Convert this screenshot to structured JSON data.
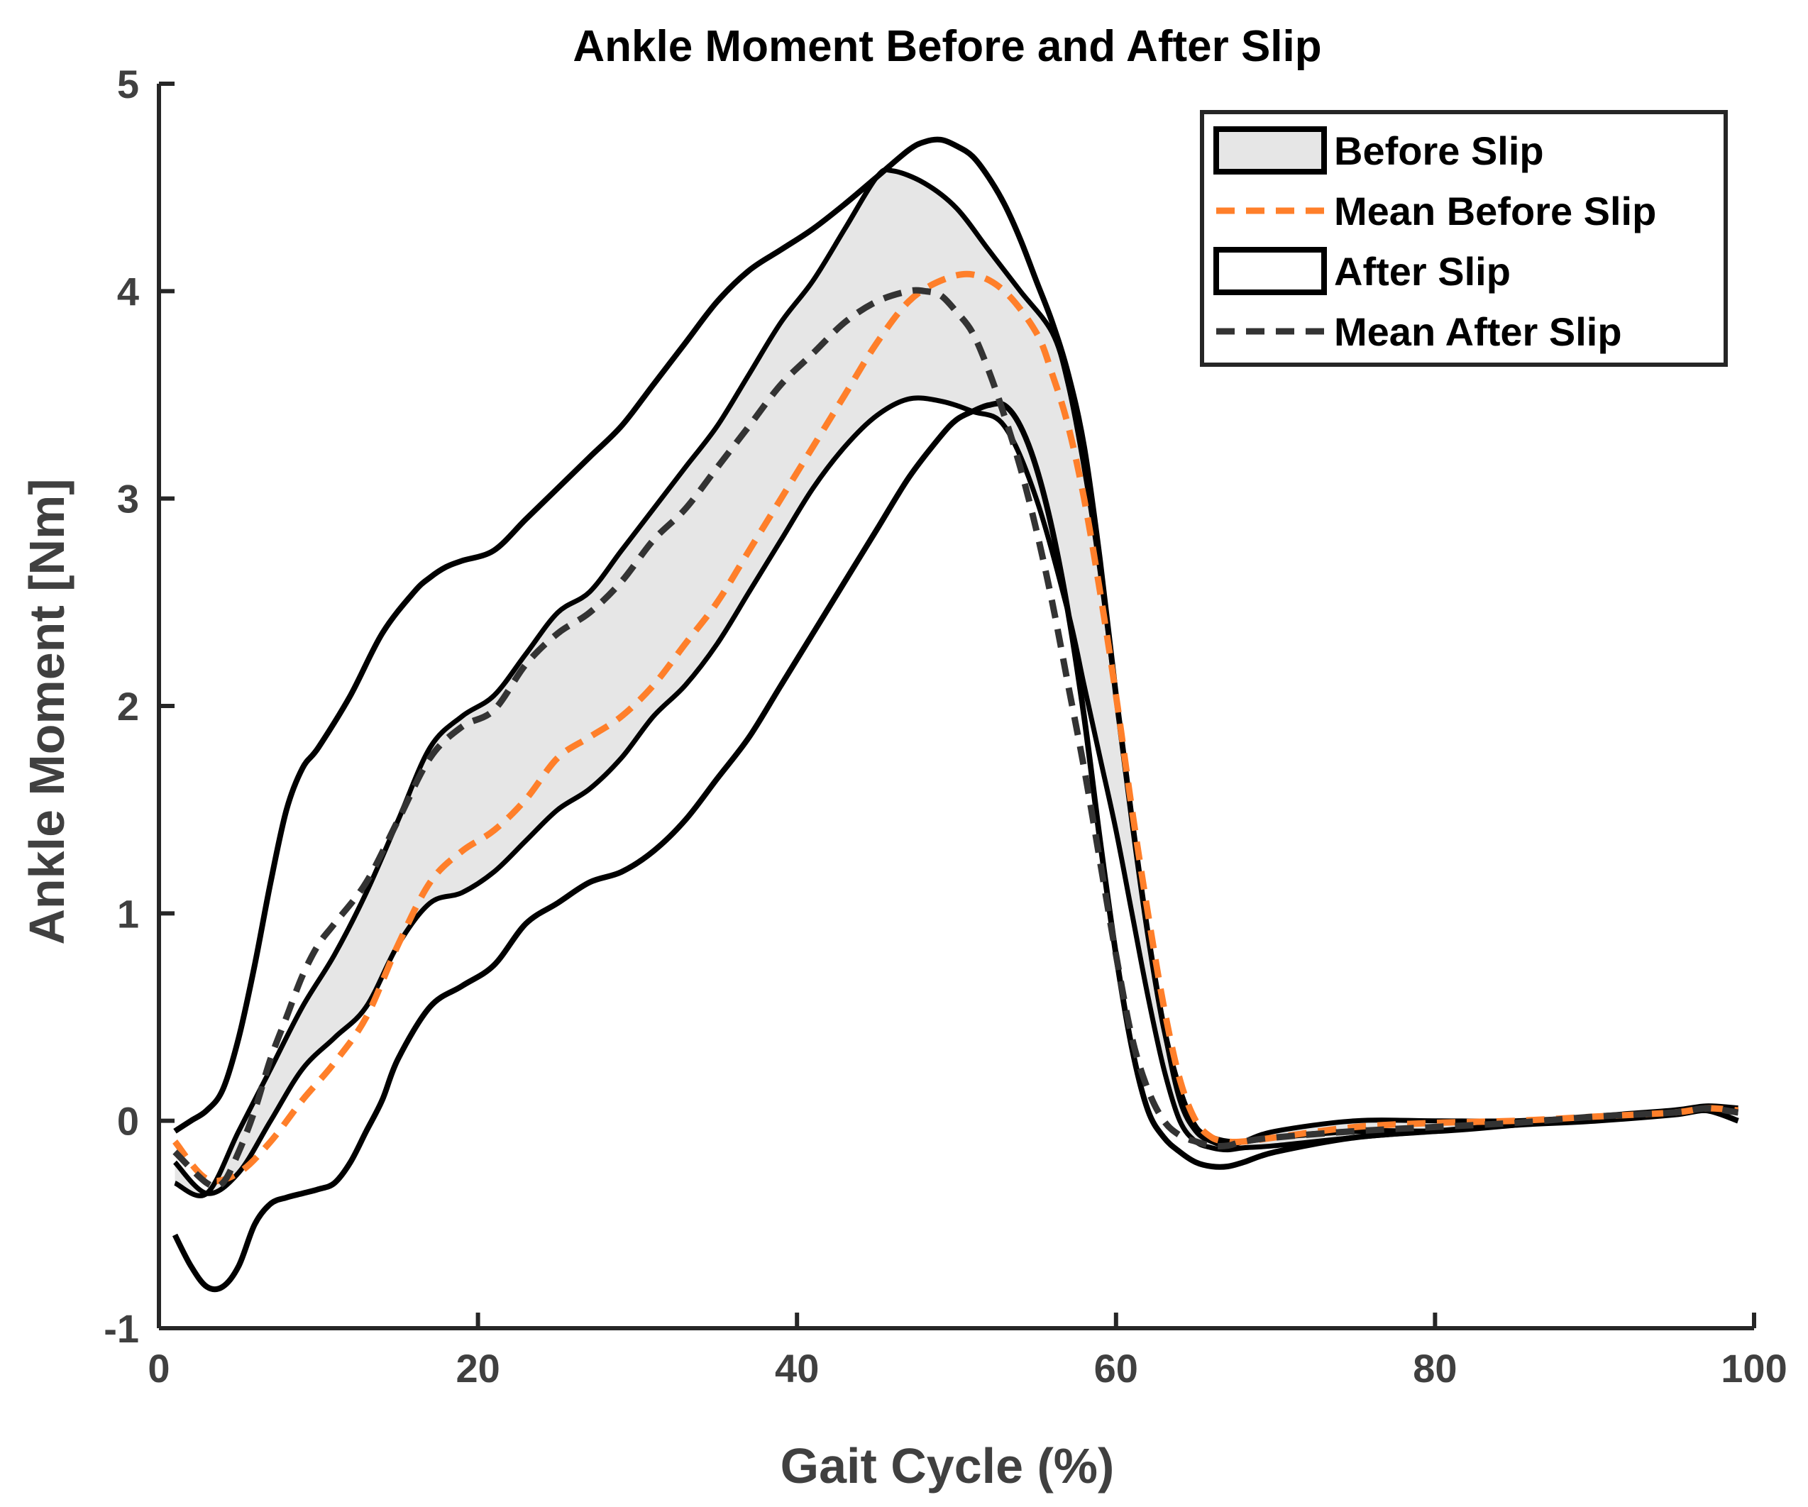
{
  "chart_data": {
    "type": "line",
    "title": "Ankle Moment Before and After Slip",
    "xlabel": "Gait Cycle (%)",
    "ylabel": "Ankle Moment [Nm]",
    "xlim": [
      0,
      100
    ],
    "ylim": [
      -1,
      5
    ],
    "xticks": [
      0,
      20,
      40,
      60,
      80,
      100
    ],
    "yticks": [
      -1,
      0,
      1,
      2,
      3,
      4,
      5
    ],
    "xtick_labels": [
      "0",
      "20",
      "40",
      "60",
      "80",
      "100"
    ],
    "ytick_labels": [
      "-1",
      "0",
      "1",
      "2",
      "3",
      "4",
      "5"
    ],
    "grid": false,
    "legend_position": "top-right",
    "colors": {
      "before_fill": "#e6e6e6",
      "outline": "#000000",
      "mean_before": "#ff7f2a",
      "mean_after": "#333333",
      "axis": "#262626"
    },
    "legend": [
      {
        "label": "Before Slip",
        "kind": "band-filled"
      },
      {
        "label": "Mean Before Slip",
        "kind": "dashed-orange"
      },
      {
        "label": "After Slip",
        "kind": "band-empty"
      },
      {
        "label": "Mean After Slip",
        "kind": "dashed-dark"
      }
    ],
    "series": [
      {
        "name": "Before Slip upper",
        "x": [
          1,
          3,
          5,
          7,
          9,
          11,
          13,
          15,
          17,
          19,
          21,
          23,
          25,
          27,
          29,
          31,
          33,
          35,
          37,
          39,
          41,
          43,
          45,
          46,
          48,
          50,
          52,
          54,
          56,
          57,
          58,
          59,
          60,
          61,
          62,
          63,
          64,
          65,
          66,
          67,
          68,
          70,
          75,
          80,
          85,
          90,
          95,
          97,
          99
        ],
        "y": [
          -0.3,
          -0.35,
          -0.05,
          0.25,
          0.55,
          0.8,
          1.1,
          1.45,
          1.8,
          1.95,
          2.05,
          2.25,
          2.45,
          2.55,
          2.75,
          2.95,
          3.15,
          3.35,
          3.6,
          3.85,
          4.05,
          4.3,
          4.55,
          4.58,
          4.52,
          4.4,
          4.2,
          4.0,
          3.8,
          3.55,
          3.15,
          2.65,
          2.05,
          1.45,
          0.9,
          0.45,
          0.1,
          -0.05,
          -0.1,
          -0.12,
          -0.1,
          -0.05,
          0.0,
          0.0,
          0.0,
          0.02,
          0.05,
          0.07,
          0.05
        ]
      },
      {
        "name": "Before Slip lower",
        "x": [
          1,
          3,
          5,
          7,
          9,
          11,
          13,
          15,
          17,
          19,
          21,
          23,
          25,
          27,
          29,
          31,
          33,
          35,
          37,
          39,
          41,
          43,
          45,
          47,
          49,
          51,
          53,
          55,
          57,
          58,
          59,
          60,
          61,
          62,
          63,
          64,
          65,
          66,
          67,
          68,
          70,
          75,
          80,
          85,
          90,
          95,
          97,
          99
        ],
        "y": [
          -0.2,
          -0.35,
          -0.25,
          0.0,
          0.25,
          0.4,
          0.55,
          0.85,
          1.05,
          1.1,
          1.2,
          1.35,
          1.5,
          1.6,
          1.75,
          1.95,
          2.1,
          2.3,
          2.55,
          2.8,
          3.05,
          3.25,
          3.4,
          3.48,
          3.47,
          3.42,
          3.35,
          3.0,
          2.45,
          2.1,
          1.75,
          1.4,
          1.0,
          0.6,
          0.25,
          0.0,
          -0.1,
          -0.13,
          -0.14,
          -0.13,
          -0.12,
          -0.08,
          -0.05,
          -0.02,
          0.0,
          0.03,
          0.05,
          0.04
        ]
      },
      {
        "name": "After Slip upper",
        "x": [
          1,
          2,
          3,
          4,
          5,
          6,
          7,
          8,
          9,
          10,
          12,
          14,
          16,
          17,
          18,
          19,
          21,
          23,
          25,
          27,
          29,
          31,
          33,
          35,
          37,
          39,
          41,
          43,
          45,
          47,
          48,
          49,
          50,
          51,
          52,
          53,
          54,
          55,
          56,
          57,
          58,
          59,
          60,
          61,
          62,
          63,
          64,
          65,
          66,
          67,
          68,
          70,
          75,
          80,
          85,
          90,
          95,
          97,
          99
        ],
        "y": [
          -0.05,
          0.0,
          0.05,
          0.15,
          0.4,
          0.75,
          1.15,
          1.5,
          1.7,
          1.8,
          2.05,
          2.35,
          2.55,
          2.62,
          2.67,
          2.7,
          2.75,
          2.9,
          3.05,
          3.2,
          3.35,
          3.55,
          3.75,
          3.95,
          4.1,
          4.2,
          4.3,
          4.42,
          4.55,
          4.68,
          4.72,
          4.73,
          4.7,
          4.65,
          4.55,
          4.42,
          4.25,
          4.05,
          3.85,
          3.6,
          3.25,
          2.7,
          2.05,
          1.45,
          0.9,
          0.45,
          0.15,
          -0.03,
          -0.08,
          -0.1,
          -0.1,
          -0.08,
          -0.05,
          -0.05,
          -0.02,
          0.02,
          0.05,
          0.07,
          0.06
        ]
      },
      {
        "name": "After Slip lower",
        "x": [
          1,
          2,
          3,
          4,
          5,
          6,
          7,
          8,
          9,
          10,
          11,
          12,
          13,
          14,
          15,
          17,
          19,
          21,
          23,
          25,
          27,
          29,
          31,
          33,
          35,
          37,
          39,
          41,
          43,
          45,
          47,
          49,
          50,
          51,
          52,
          53,
          54,
          55,
          56,
          57,
          58,
          59,
          60,
          61,
          62,
          63,
          64,
          65,
          66,
          67,
          68,
          70,
          75,
          80,
          85,
          90,
          95,
          97,
          99
        ],
        "y": [
          -0.55,
          -0.7,
          -0.8,
          -0.8,
          -0.7,
          -0.5,
          -0.4,
          -0.37,
          -0.35,
          -0.33,
          -0.3,
          -0.2,
          -0.05,
          0.1,
          0.3,
          0.55,
          0.65,
          0.75,
          0.95,
          1.05,
          1.15,
          1.2,
          1.3,
          1.45,
          1.65,
          1.85,
          2.1,
          2.35,
          2.6,
          2.85,
          3.1,
          3.3,
          3.38,
          3.42,
          3.45,
          3.45,
          3.35,
          3.15,
          2.85,
          2.45,
          1.95,
          1.35,
          0.8,
          0.35,
          0.05,
          -0.08,
          -0.15,
          -0.2,
          -0.22,
          -0.22,
          -0.2,
          -0.15,
          -0.08,
          -0.05,
          -0.02,
          0.0,
          0.03,
          0.05,
          0.0
        ]
      },
      {
        "name": "Mean Before Slip",
        "x": [
          1,
          3,
          5,
          7,
          9,
          11,
          13,
          15,
          17,
          19,
          21,
          23,
          25,
          27,
          29,
          31,
          33,
          35,
          37,
          39,
          41,
          43,
          45,
          47,
          49,
          51,
          53,
          55,
          56,
          57,
          58,
          59,
          60,
          61,
          62,
          63,
          64,
          65,
          66,
          67,
          68,
          70,
          75,
          80,
          85,
          90,
          95,
          97,
          99
        ],
        "y": [
          -0.1,
          -0.28,
          -0.25,
          -0.1,
          0.1,
          0.28,
          0.5,
          0.85,
          1.15,
          1.3,
          1.4,
          1.55,
          1.75,
          1.85,
          1.95,
          2.1,
          2.3,
          2.5,
          2.75,
          3.0,
          3.25,
          3.5,
          3.75,
          3.95,
          4.05,
          4.08,
          4.0,
          3.8,
          3.6,
          3.35,
          3.0,
          2.55,
          2.05,
          1.5,
          1.0,
          0.55,
          0.2,
          0.0,
          -0.08,
          -0.1,
          -0.1,
          -0.08,
          -0.03,
          -0.01,
          0.0,
          0.02,
          0.04,
          0.06,
          0.05
        ]
      },
      {
        "name": "Mean After Slip",
        "x": [
          1,
          3,
          4,
          5,
          6,
          7,
          8,
          9,
          10,
          11,
          13,
          15,
          17,
          19,
          21,
          23,
          25,
          27,
          29,
          31,
          33,
          35,
          37,
          39,
          41,
          43,
          45,
          47,
          48,
          49,
          50,
          51,
          52,
          53,
          54,
          55,
          56,
          57,
          58,
          59,
          60,
          61,
          62,
          63,
          64,
          65,
          66,
          67,
          68,
          70,
          75,
          80,
          85,
          90,
          95,
          97,
          99
        ],
        "y": [
          -0.15,
          -0.3,
          -0.3,
          -0.15,
          0.05,
          0.3,
          0.5,
          0.7,
          0.85,
          0.95,
          1.15,
          1.45,
          1.75,
          1.9,
          1.98,
          2.2,
          2.35,
          2.45,
          2.6,
          2.8,
          2.95,
          3.15,
          3.35,
          3.55,
          3.7,
          3.85,
          3.95,
          4.0,
          4.0,
          3.98,
          3.9,
          3.8,
          3.62,
          3.4,
          3.15,
          2.85,
          2.5,
          2.1,
          1.7,
          1.25,
          0.8,
          0.4,
          0.15,
          0.0,
          -0.07,
          -0.1,
          -0.12,
          -0.12,
          -0.1,
          -0.08,
          -0.05,
          -0.03,
          -0.01,
          0.02,
          0.04,
          0.06,
          0.04
        ]
      }
    ]
  }
}
